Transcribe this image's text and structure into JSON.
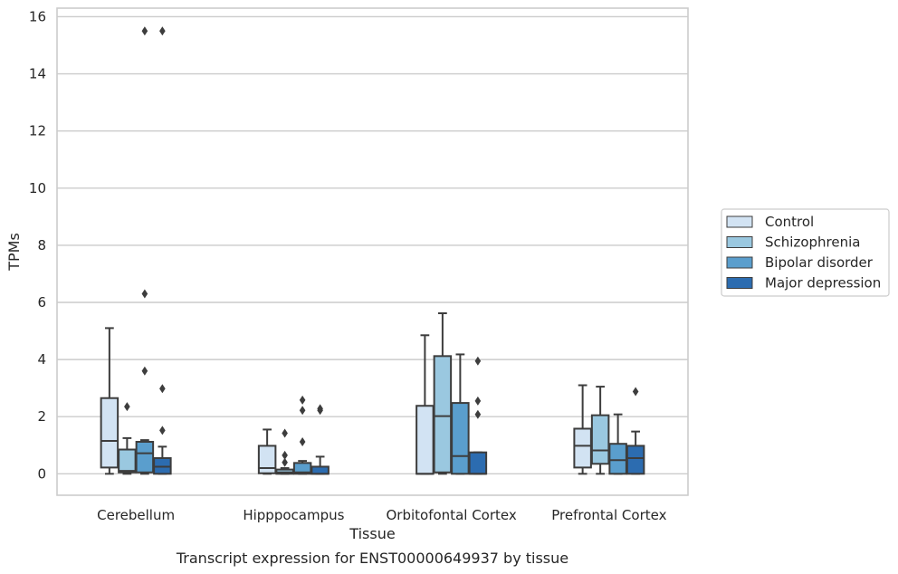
{
  "chart_data": {
    "type": "box",
    "caption": "Transcript expression for ENST00000649937 by tissue",
    "xlabel": "Tissue",
    "ylabel": "TPMs",
    "ylim": [
      -0.75,
      16.3
    ],
    "yticks": [
      0,
      2,
      4,
      6,
      8,
      10,
      12,
      14,
      16
    ],
    "grid": true,
    "legend_position": "right",
    "categories": [
      "Cerebellum",
      "Hipppocampus",
      "Orbitofontal Cortex",
      "Prefrontal Cortex"
    ],
    "series": [
      {
        "name": "Control",
        "color": "#d2e3f3",
        "boxes": [
          {
            "whislo": 0.0,
            "q1": 0.22,
            "med": 1.15,
            "q3": 2.65,
            "whishi": 5.1,
            "fliers": []
          },
          {
            "whislo": 0.0,
            "q1": 0.02,
            "med": 0.2,
            "q3": 0.98,
            "whishi": 1.55,
            "fliers": []
          },
          {
            "whislo": 0.0,
            "q1": 0.0,
            "med": 0.0,
            "q3": 2.38,
            "whishi": 4.85,
            "fliers": []
          },
          {
            "whislo": 0.0,
            "q1": 0.22,
            "med": 0.98,
            "q3": 1.58,
            "whishi": 3.1,
            "fliers": []
          }
        ]
      },
      {
        "name": "Schizophrenia",
        "color": "#9ac8e0",
        "boxes": [
          {
            "whislo": 0.0,
            "q1": 0.05,
            "med": 0.1,
            "q3": 0.85,
            "whishi": 1.25,
            "fliers": [
              2.35
            ]
          },
          {
            "whislo": 0.0,
            "q1": 0.0,
            "med": 0.05,
            "q3": 0.15,
            "whishi": 0.2,
            "fliers": [
              0.4,
              0.65,
              1.42
            ]
          },
          {
            "whislo": 0.0,
            "q1": 0.05,
            "med": 2.02,
            "q3": 4.12,
            "whishi": 5.62,
            "fliers": []
          },
          {
            "whislo": 0.0,
            "q1": 0.35,
            "med": 0.82,
            "q3": 2.05,
            "whishi": 3.05,
            "fliers": []
          }
        ]
      },
      {
        "name": "Bipolar disorder",
        "color": "#5a9ecd",
        "boxes": [
          {
            "whislo": 0.0,
            "q1": 0.05,
            "med": 0.72,
            "q3": 1.12,
            "whishi": 1.18,
            "fliers": [
              3.6,
              6.3,
              15.5
            ]
          },
          {
            "whislo": 0.0,
            "q1": 0.0,
            "med": 0.05,
            "q3": 0.38,
            "whishi": 0.45,
            "fliers": [
              1.12,
              2.22,
              2.58
            ]
          },
          {
            "whislo": 0.0,
            "q1": 0.0,
            "med": 0.62,
            "q3": 2.48,
            "whishi": 4.18,
            "fliers": []
          },
          {
            "whislo": 0.0,
            "q1": 0.0,
            "med": 0.48,
            "q3": 1.05,
            "whishi": 2.08,
            "fliers": []
          }
        ]
      },
      {
        "name": "Major depression",
        "color": "#2c6cb0",
        "boxes": [
          {
            "whislo": 0.0,
            "q1": 0.0,
            "med": 0.25,
            "q3": 0.55,
            "whishi": 0.95,
            "fliers": [
              1.52,
              2.98,
              15.5
            ]
          },
          {
            "whislo": 0.0,
            "q1": 0.0,
            "med": 0.0,
            "q3": 0.25,
            "whishi": 0.6,
            "fliers": [
              2.22,
              2.28
            ]
          },
          {
            "whislo": 0.0,
            "q1": 0.0,
            "med": 0.0,
            "q3": 0.75,
            "whishi": 0.75,
            "fliers": [
              2.08,
              2.55,
              3.95
            ]
          },
          {
            "whislo": 0.0,
            "q1": 0.0,
            "med": 0.55,
            "q3": 0.98,
            "whishi": 1.48,
            "fliers": [
              2.88
            ]
          }
        ]
      }
    ]
  }
}
